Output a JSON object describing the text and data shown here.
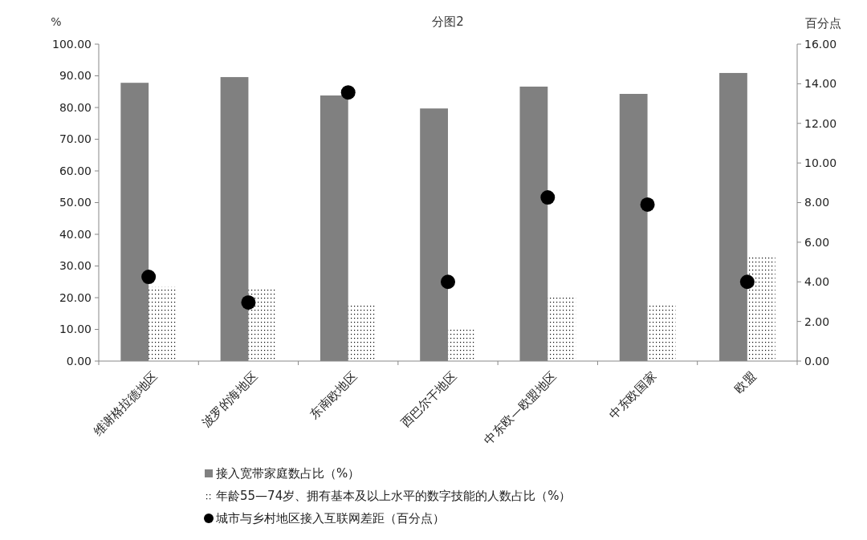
{
  "chart_data": {
    "type": "bar",
    "title": "分图2",
    "ylabel": "%",
    "y2label": "百分点",
    "categories": [
      "维谢格拉德地区",
      "波罗的海地区",
      "东南欧地区",
      "西巴尔干地区",
      "中东欧—欧盟地区",
      "中东欧国家",
      "欧盟"
    ],
    "series": [
      {
        "name": "接入宽带家庭数占比（%）",
        "color": "#808080",
        "values": [
          87.8,
          89.6,
          83.8,
          79.7,
          86.6,
          84.3,
          90.9
        ]
      },
      {
        "name": "年龄55—74岁、拥有基本及以上水平的数字技能的人数占比（%）",
        "color": "#000000",
        "values": [
          23.5,
          23.0,
          17.7,
          10.6,
          20.8,
          17.5,
          33.2
        ]
      },
      {
        "name": "城市与乡村地区接入互联网差距（百分点）",
        "type": "scatter",
        "axis": "y2",
        "color": "#000000",
        "marker": "circle",
        "x": [
          "维谢格拉德地区",
          "波罗的海地区",
          "东南欧地区",
          "西巴尔干地区",
          "中东欧—欧盟地区",
          "中东欧国家",
          "欧盟"
        ],
        "values": [
          4.25,
          2.96,
          13.56,
          4.0,
          8.26,
          7.9,
          4.0
        ]
      }
    ],
    "ylim": [
      0,
      100
    ],
    "yticks": [
      {
        "value": 0,
        "label": "0.00"
      },
      {
        "value": 10,
        "label": "10.00"
      },
      {
        "value": 20,
        "label": "20.00"
      },
      {
        "value": 30,
        "label": "30.00"
      },
      {
        "value": 40,
        "label": "40.00"
      },
      {
        "value": 50,
        "label": "50.00"
      },
      {
        "value": 60,
        "label": "60.00"
      },
      {
        "value": 70,
        "label": "70.00"
      },
      {
        "value": 80,
        "label": "80.00"
      },
      {
        "value": 90,
        "label": "90.00"
      },
      {
        "value": 100,
        "label": "100.00"
      }
    ],
    "y2lim": [
      0,
      16
    ],
    "y2ticks": [
      {
        "value": 0,
        "label": "0.00"
      },
      {
        "value": 2,
        "label": "2.00"
      },
      {
        "value": 4,
        "label": "4.00"
      },
      {
        "value": 6,
        "label": "6.00"
      },
      {
        "value": 8,
        "label": "8.00"
      },
      {
        "value": 10,
        "label": "10.00"
      },
      {
        "value": 12,
        "label": "12.00"
      },
      {
        "value": 14,
        "label": "14.00"
      },
      {
        "value": 16,
        "label": "16.00"
      }
    ],
    "legend": "bottom",
    "grid": false
  }
}
